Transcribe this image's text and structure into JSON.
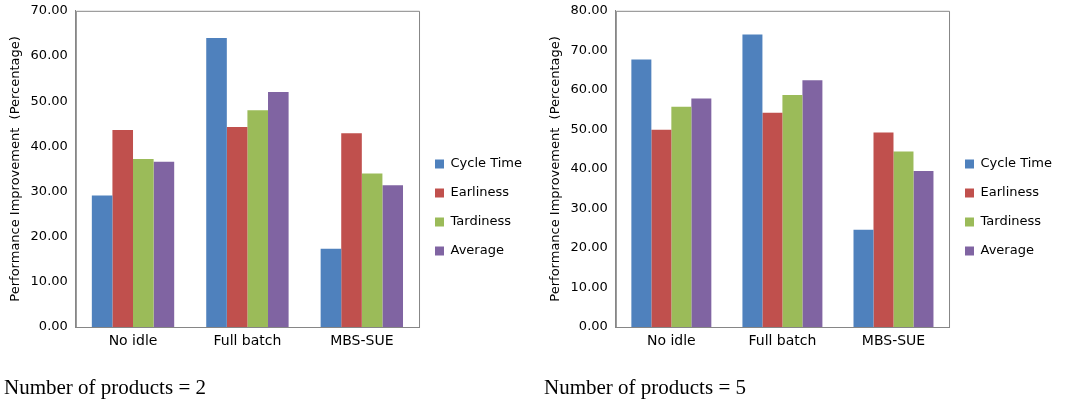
{
  "chart_data": [
    {
      "type": "bar",
      "title": "Number of products = 2",
      "ylabel": "Performance Improvement  (Percentage)",
      "categories": [
        "No idle",
        "Full batch",
        "MBS-SUE"
      ],
      "series": [
        {
          "name": "Cycle Time",
          "color": "#4f81bd",
          "values": [
            29.1,
            64.0,
            17.3
          ]
        },
        {
          "name": "Earliness",
          "color": "#c0504d",
          "values": [
            43.6,
            44.3,
            42.9
          ]
        },
        {
          "name": "Tardiness",
          "color": "#9bbb59",
          "values": [
            37.2,
            48.0,
            34.0
          ]
        },
        {
          "name": "Average",
          "color": "#8064a2",
          "values": [
            36.6,
            52.0,
            31.4
          ]
        }
      ],
      "ylim": [
        0,
        70
      ],
      "yticks": [
        {
          "value": 0,
          "label": "0.00"
        },
        {
          "value": 10,
          "label": "10.00"
        },
        {
          "value": 20,
          "label": "20.00"
        },
        {
          "value": 30,
          "label": "30.00"
        },
        {
          "value": 40,
          "label": "40.00"
        },
        {
          "value": 50,
          "label": "50.00"
        },
        {
          "value": 60,
          "label": "60.00"
        },
        {
          "value": 70,
          "label": "70.00"
        }
      ],
      "grid": false,
      "legend": "right"
    },
    {
      "type": "bar",
      "title": "Number of products = 5",
      "ylabel": "Performance Improvement  (Percentage)",
      "categories": [
        "No idle",
        "Full batch",
        "MBS-SUE"
      ],
      "series": [
        {
          "name": "Cycle Time",
          "color": "#4f81bd",
          "values": [
            67.7,
            74.0,
            24.6
          ]
        },
        {
          "name": "Earliness",
          "color": "#c0504d",
          "values": [
            49.9,
            54.2,
            49.2
          ]
        },
        {
          "name": "Tardiness",
          "color": "#9bbb59",
          "values": [
            55.7,
            58.7,
            44.4
          ]
        },
        {
          "name": "Average",
          "color": "#8064a2",
          "values": [
            57.8,
            62.4,
            39.5
          ]
        }
      ],
      "ylim": [
        0,
        80
      ],
      "yticks": [
        {
          "value": 0,
          "label": "0.00"
        },
        {
          "value": 10,
          "label": "10.00"
        },
        {
          "value": 20,
          "label": "20.00"
        },
        {
          "value": 30,
          "label": "30.00"
        },
        {
          "value": 40,
          "label": "40.00"
        },
        {
          "value": 50,
          "label": "50.00"
        },
        {
          "value": 60,
          "label": "60.00"
        },
        {
          "value": 70,
          "label": "70.00"
        },
        {
          "value": 80,
          "label": "80.00"
        }
      ],
      "grid": false,
      "legend": "right"
    }
  ]
}
